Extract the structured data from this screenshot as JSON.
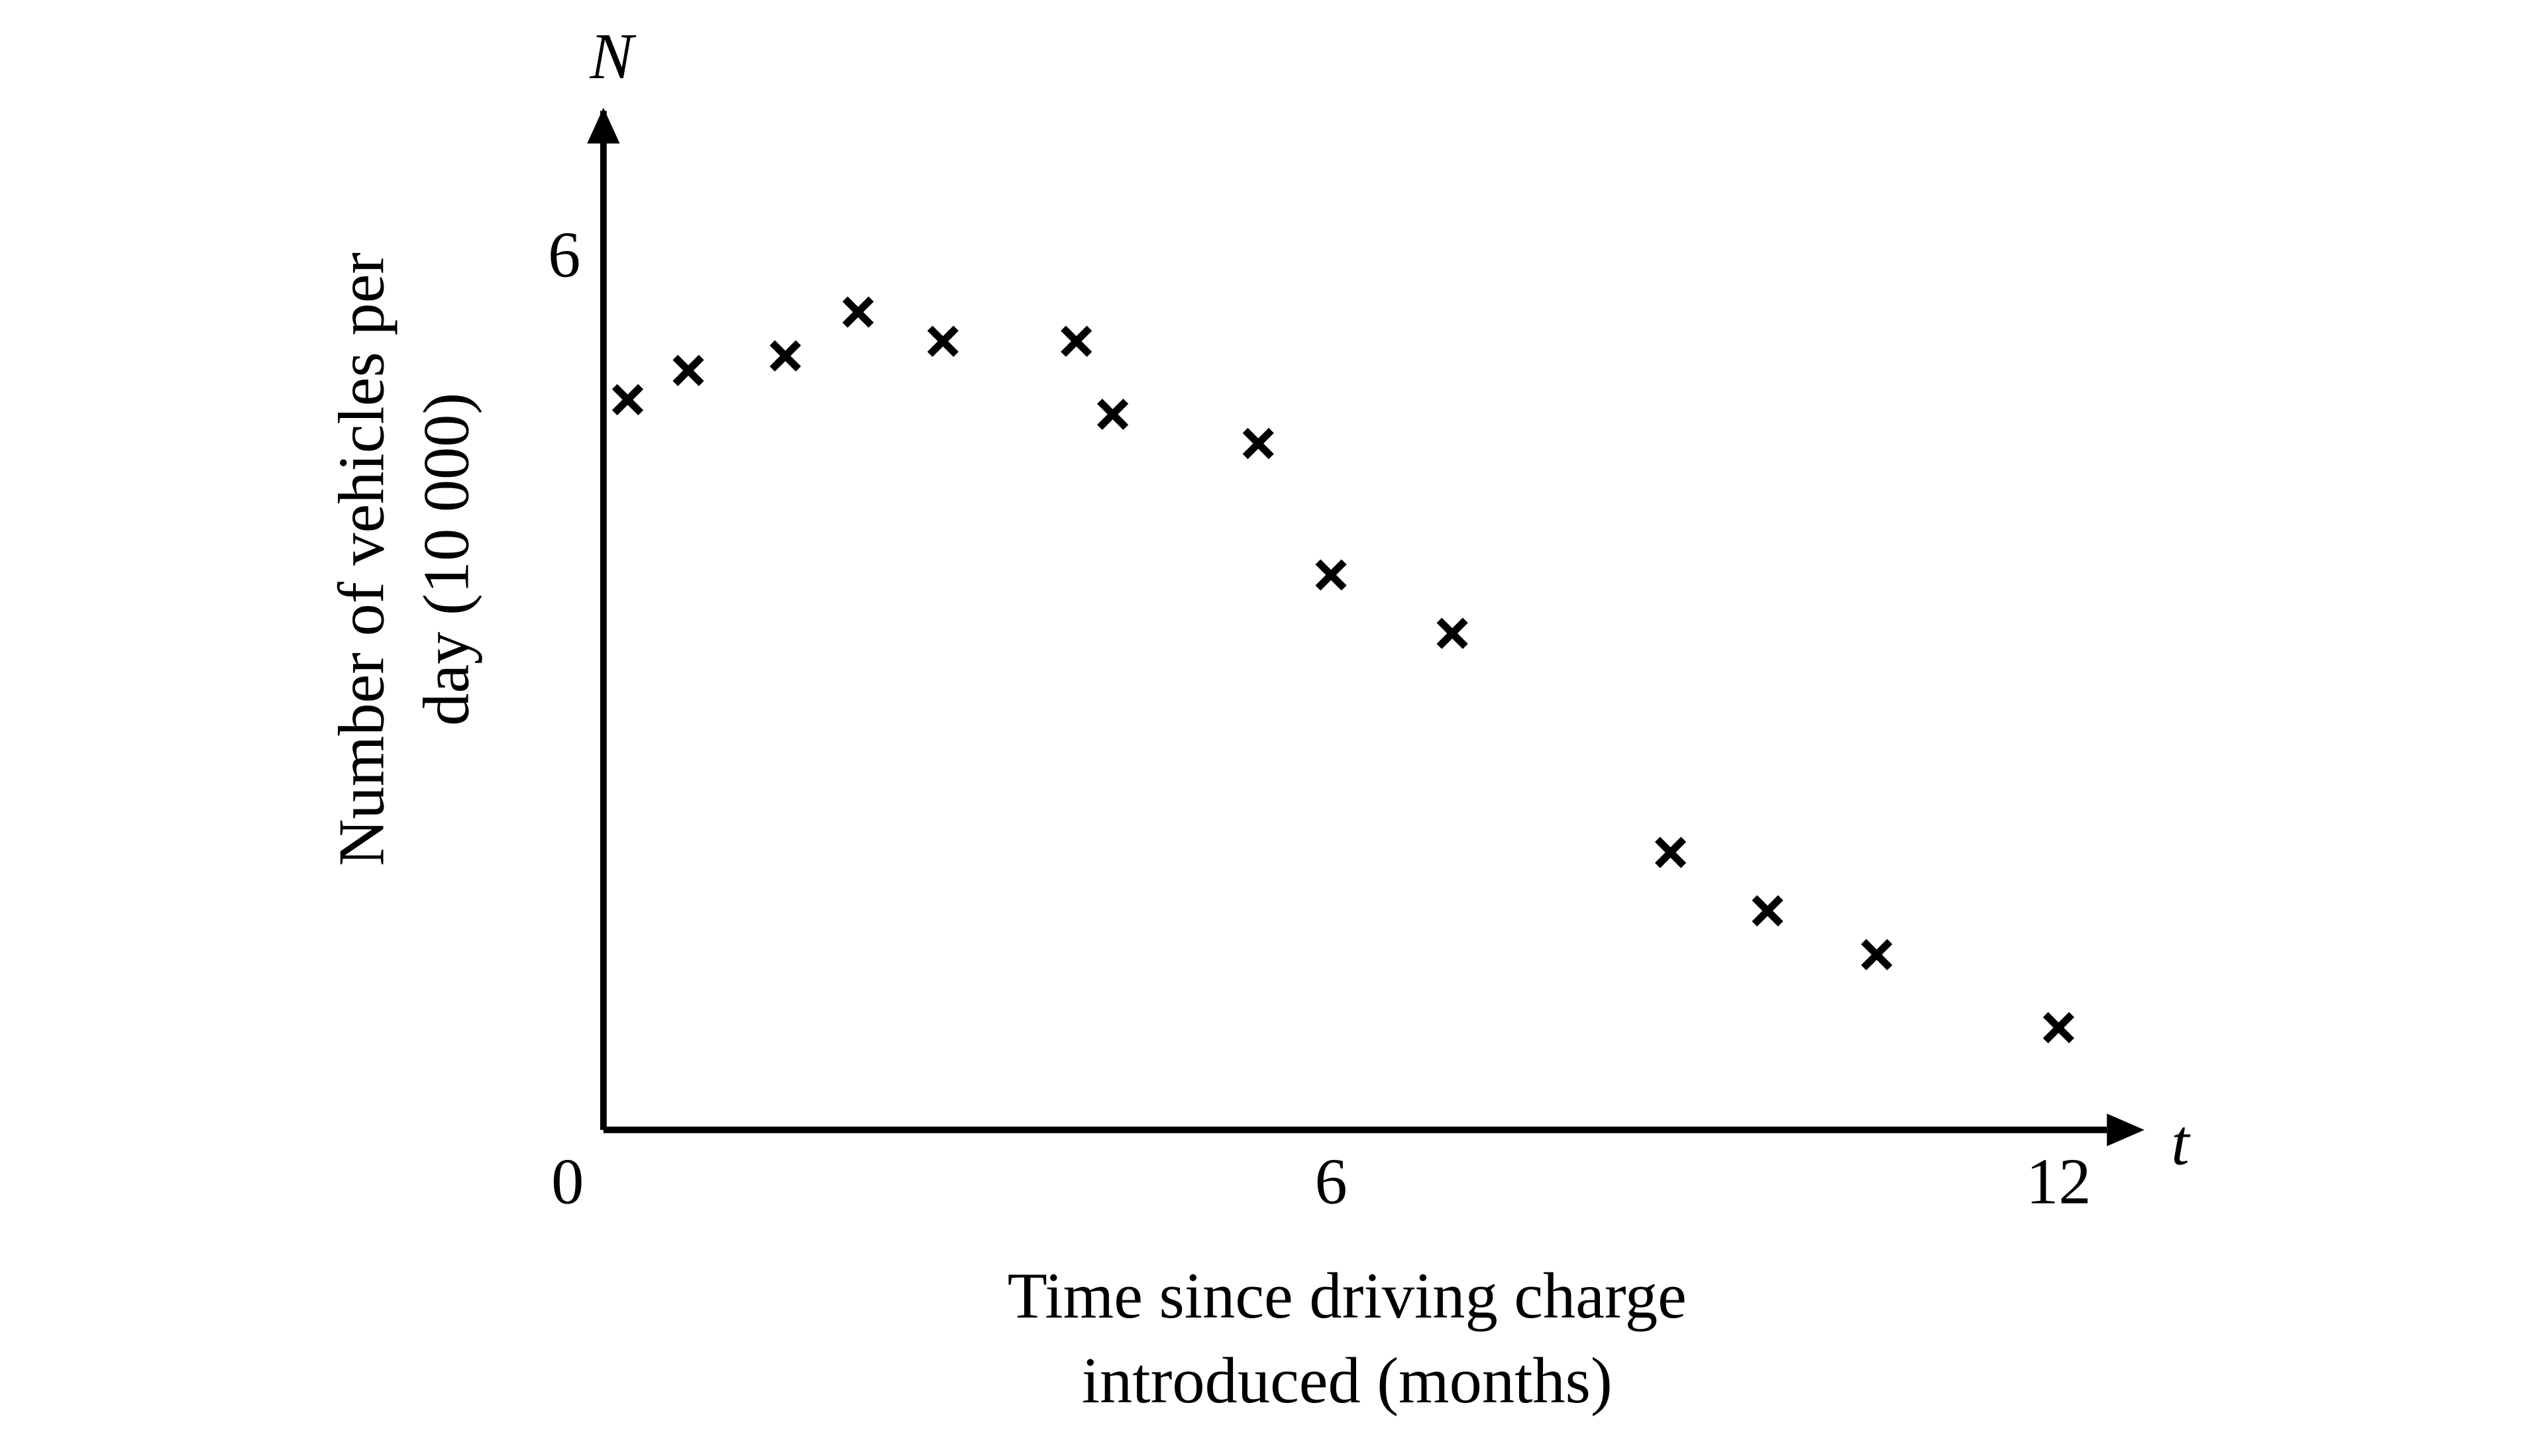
{
  "chart_data": {
    "type": "scatter",
    "x_label": [
      "Time since driving charge",
      "introduced (months)"
    ],
    "y_label": [
      "Number of vehicles per",
      "day (10 000)"
    ],
    "x_axis_symbol": "t",
    "y_axis_symbol": "N",
    "color": "#000000",
    "marker": "x",
    "x": [
      0.2,
      0.7,
      1.5,
      2.1,
      2.8,
      3.9,
      4.2,
      5.4,
      6.0,
      7.0,
      8.8,
      9.6,
      10.5,
      12.0
    ],
    "values": [
      5.0,
      5.2,
      5.3,
      5.6,
      5.4,
      5.4,
      4.9,
      4.7,
      3.8,
      3.4,
      1.9,
      1.5,
      1.2,
      0.7
    ],
    "xlim": [
      0,
      12.6
    ],
    "ylim": [
      0,
      7
    ],
    "xticks": [
      0,
      6,
      12
    ],
    "yticks": [
      6
    ]
  }
}
